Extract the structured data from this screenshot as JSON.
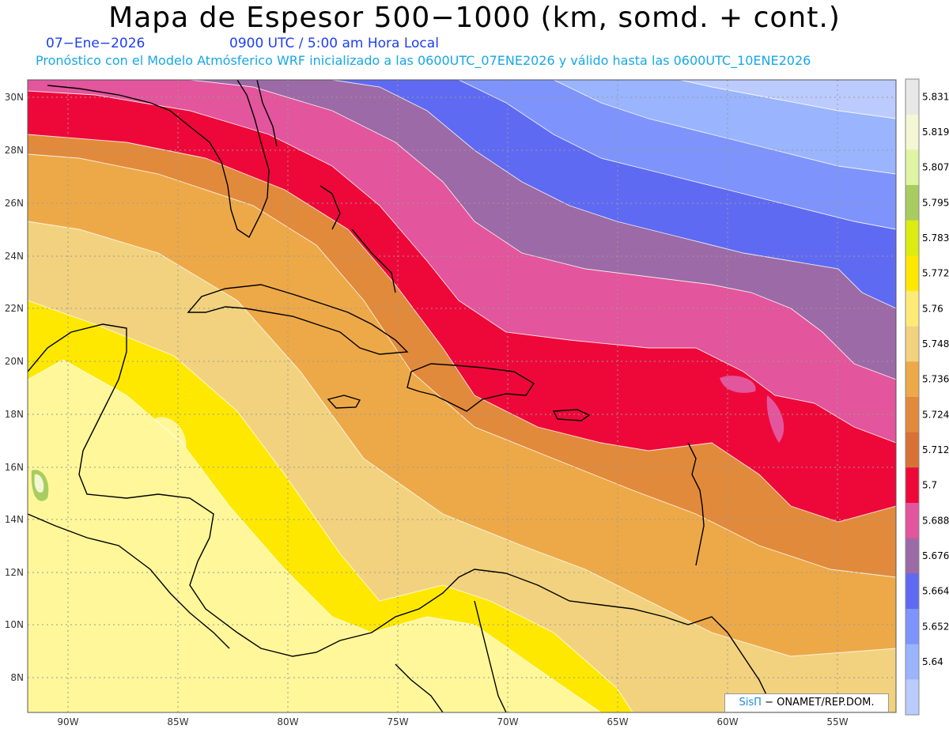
{
  "header": {
    "title": "Mapa de Espesor 500−1000 (km, somd. + cont.)",
    "date": "07−Ene−2026",
    "time": "0900 UTC / 5:00 am Hora Local",
    "forecast": "Pronóstico con el Modelo Atmósferico WRF inicializado a las 0600UTC_07ENE2026 y válido hasta las  0600UTC_10ENE2026"
  },
  "axes": {
    "lat_labels": [
      "30N",
      "28N",
      "26N",
      "24N",
      "22N",
      "20N",
      "18N",
      "16N",
      "14N",
      "12N",
      "10N",
      "8N"
    ],
    "lon_labels": [
      "90W",
      "85W",
      "80W",
      "75W",
      "70W",
      "65W",
      "60W",
      "55W"
    ]
  },
  "colorbar": {
    "labels": [
      "5.831",
      "5.819",
      "5.807",
      "5.795",
      "5.783",
      "5.772",
      "5.76",
      "5.748",
      "5.736",
      "5.724",
      "5.712",
      "5.7",
      "5.688",
      "5.676",
      "5.664",
      "5.652",
      "5.64"
    ],
    "colors": [
      "#e8e8e8",
      "#f3f7d4",
      "#e1f4a3",
      "#a8cc60",
      "#dcec10",
      "#ffe800",
      "#ffea78",
      "#f2d27e",
      "#eda948",
      "#e28a3b",
      "#d87136",
      "#ee083a",
      "#e3559c",
      "#9c6aa6",
      "#5f6af2",
      "#7e93fb",
      "#9ab4fe",
      "#bccbfd"
    ]
  },
  "credit": {
    "sis": "SisΠ",
    "rest": " − ONAMET/REP.DOM."
  }
}
